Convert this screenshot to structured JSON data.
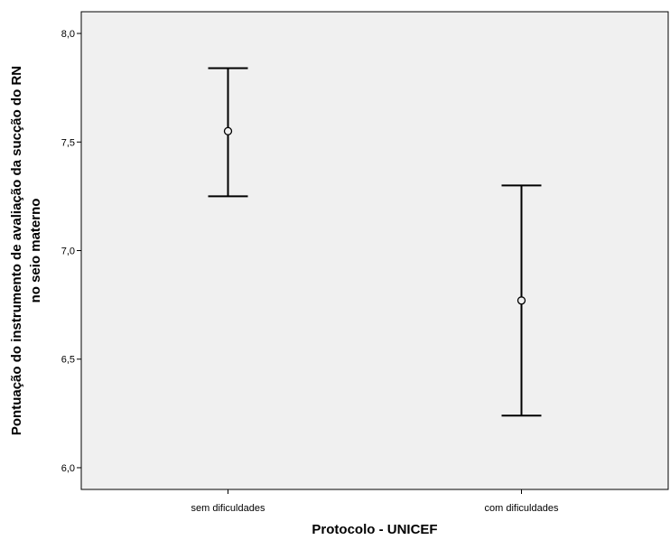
{
  "chart_data": {
    "type": "errorbar",
    "categories": [
      "sem dificuldades",
      "com dificuldades"
    ],
    "means": [
      7.55,
      6.77
    ],
    "lower": [
      7.25,
      6.24
    ],
    "upper": [
      7.84,
      7.3
    ],
    "ylim": [
      5.9,
      8.1
    ],
    "yticks": [
      6.0,
      6.5,
      7.0,
      7.5,
      8.0
    ],
    "ytick_labels": [
      "6,0",
      "6,5",
      "7,0",
      "7,5",
      "8,0"
    ],
    "xlabel": "Protocolo - UNICEF",
    "ylabel_lines": [
      "Pontuação do instrumento de avaliação da sucção do RN",
      "no seio materno"
    ],
    "grid": false,
    "plot_background": "#f0f0f0",
    "line_color": "#000000"
  }
}
